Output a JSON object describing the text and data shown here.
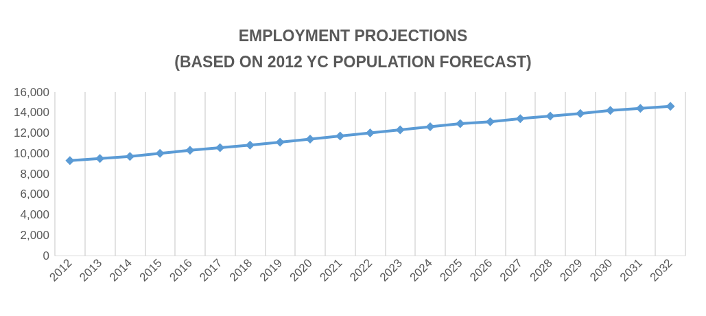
{
  "chart_data": {
    "type": "line",
    "title": "EMPLOYMENT PROJECTIONS\n(BASED ON 2012 YC POPULATION FORECAST)",
    "categories": [
      "2012",
      "2013",
      "2014",
      "2015",
      "2016",
      "2017",
      "2018",
      "2019",
      "2020",
      "2021",
      "2022",
      "2023",
      "2024",
      "2025",
      "2026",
      "2027",
      "2028",
      "2029",
      "2030",
      "2031",
      "2032"
    ],
    "series": [
      {
        "color": "#5b9bd5",
        "values": [
          9300,
          9500,
          9700,
          10000,
          10300,
          10550,
          10800,
          11100,
          11400,
          11700,
          12000,
          12300,
          12600,
          12900,
          13100,
          13400,
          13650,
          13900,
          14200,
          14400,
          14600
        ]
      }
    ],
    "ylim": [
      0,
      16000
    ],
    "yticks": [
      0,
      {
        "value": 2000,
        "label": "2,000"
      },
      {
        "value": 4000,
        "label": "4,000"
      },
      {
        "value": 6000,
        "label": "6,000"
      },
      {
        "value": 8000,
        "label": "8,000"
      },
      {
        "value": 10000,
        "label": "10,000"
      },
      {
        "value": 12000,
        "label": "12,000"
      },
      {
        "value": 14000,
        "label": "14,000"
      },
      {
        "value": 16000,
        "label": "16,000"
      }
    ],
    "grid": "x",
    "marker": "diamond",
    "line_style": "solid"
  }
}
